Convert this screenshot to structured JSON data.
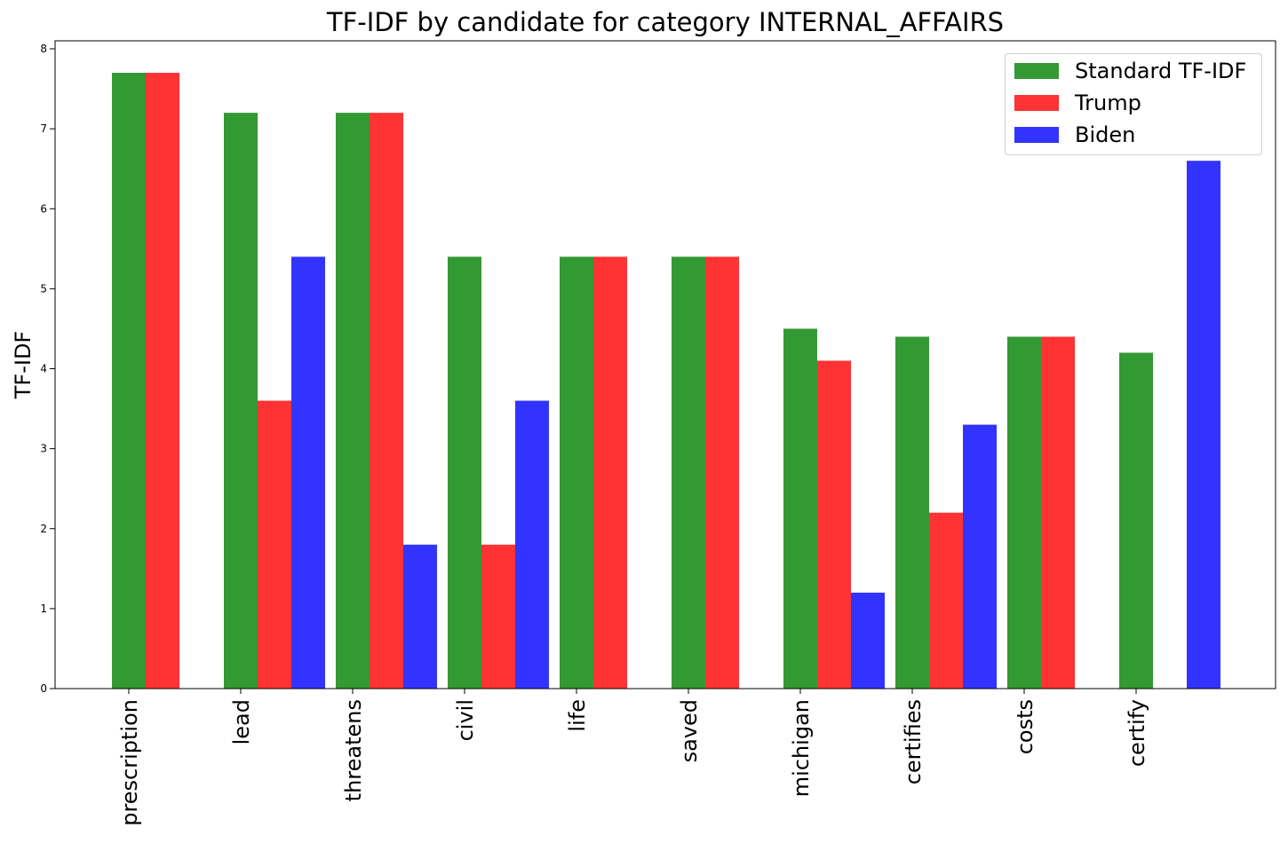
{
  "chart_data": {
    "type": "bar",
    "title": "TF-IDF by candidate for category INTERNAL_AFFAIRS",
    "xlabel": "",
    "ylabel": "TF-IDF",
    "categories": [
      "prescription",
      "lead",
      "threatens",
      "civil",
      "life",
      "saved",
      "michigan",
      "certifies",
      "costs",
      "certify"
    ],
    "ylim": [
      0,
      8.1
    ],
    "yticks": [
      0,
      1,
      2,
      3,
      4,
      5,
      6,
      7,
      8
    ],
    "grid": false,
    "legend_position": "top-right",
    "series": [
      {
        "name": "Standard TF-IDF",
        "color": "#339933",
        "values": [
          7.7,
          7.2,
          7.2,
          5.4,
          5.4,
          5.4,
          4.5,
          4.4,
          4.4,
          4.2
        ]
      },
      {
        "name": "Trump",
        "color": "#ff3333",
        "values": [
          7.7,
          3.6,
          7.2,
          1.8,
          5.4,
          5.4,
          4.1,
          2.2,
          4.4,
          0
        ]
      },
      {
        "name": "Biden",
        "color": "#3333ff",
        "values": [
          0,
          5.4,
          1.8,
          3.6,
          0,
          0,
          1.2,
          3.3,
          0,
          6.6
        ]
      }
    ]
  }
}
